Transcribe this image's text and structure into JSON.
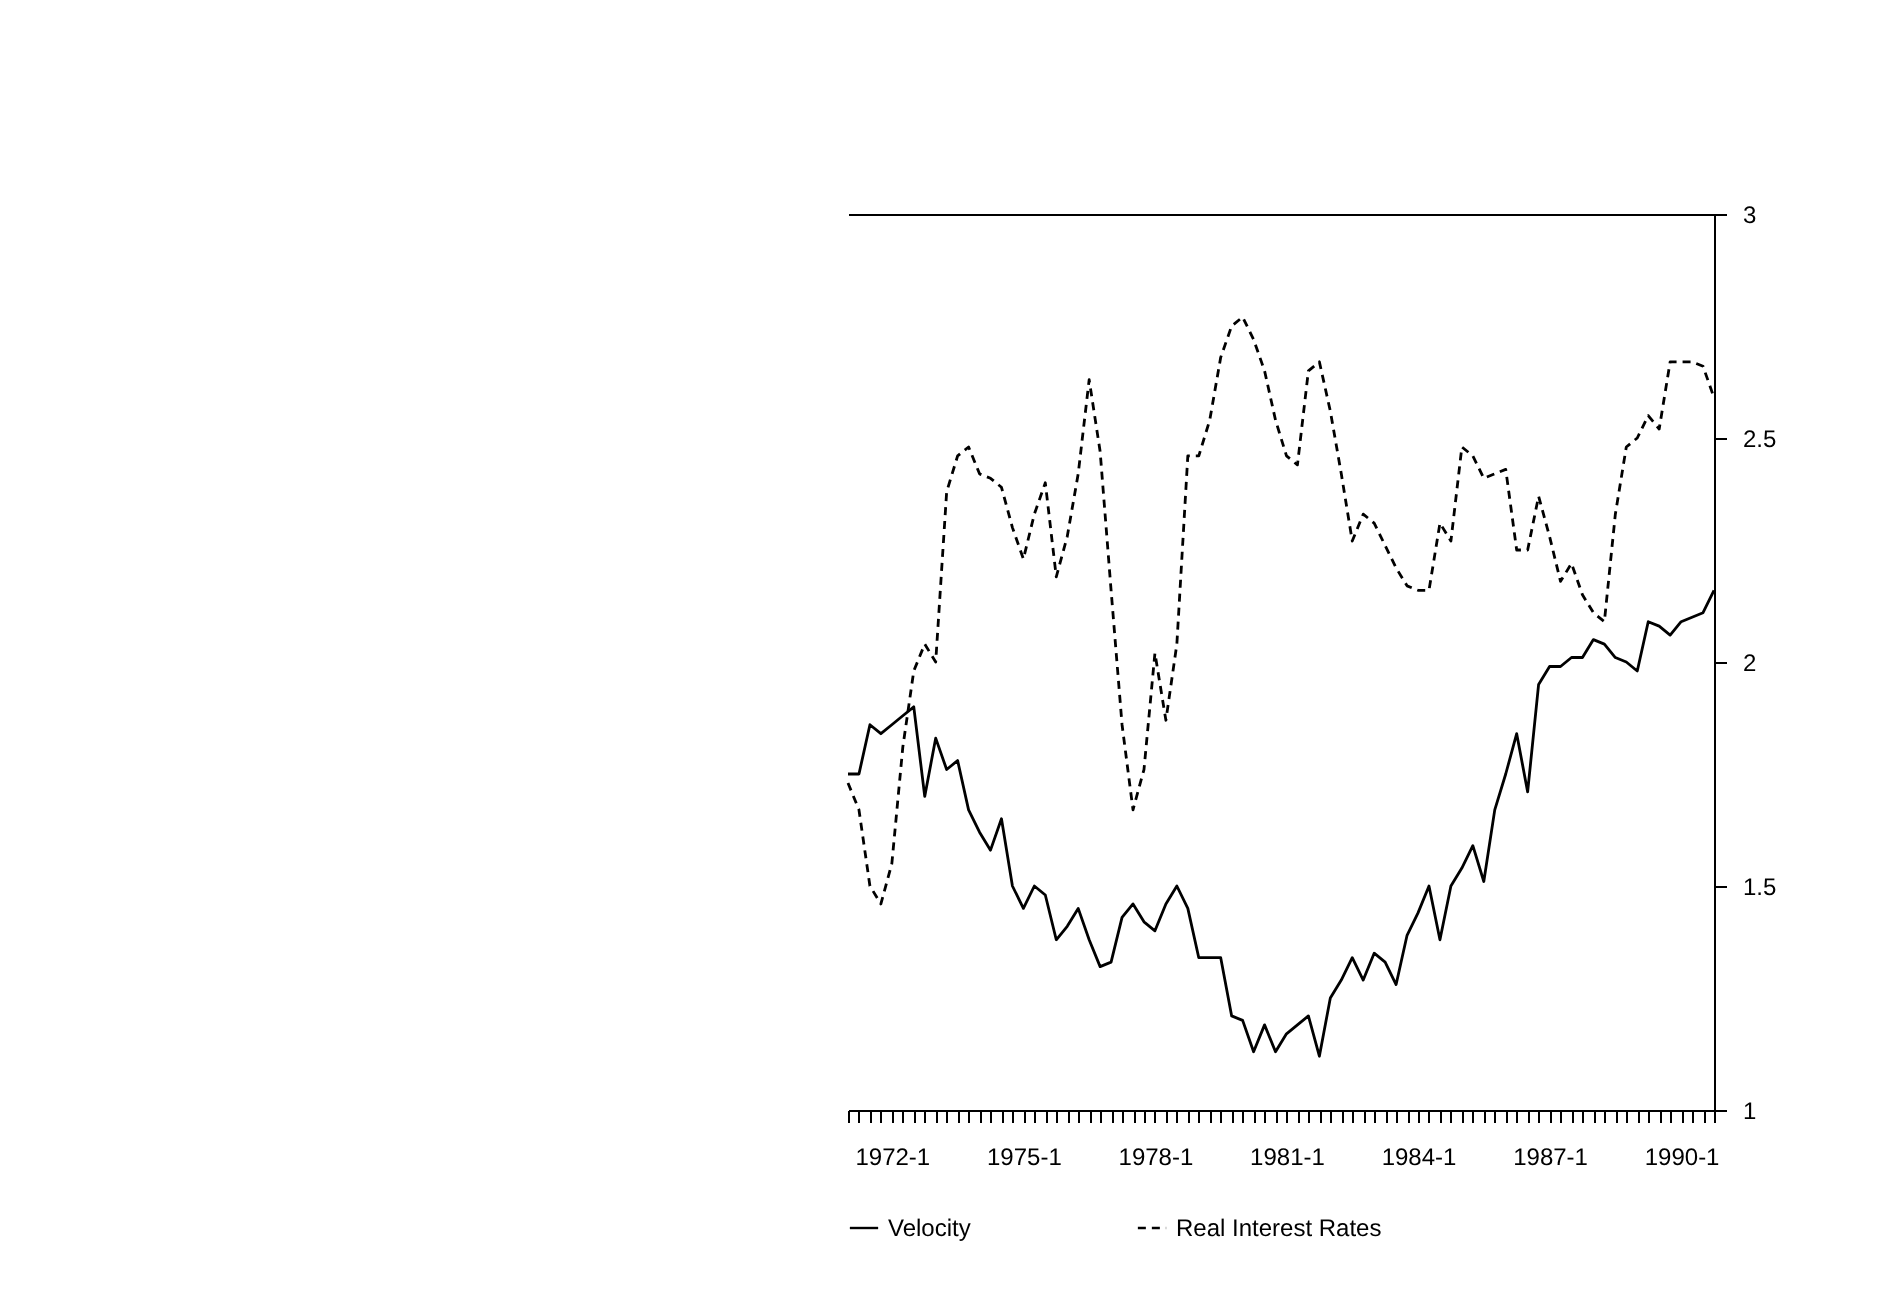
{
  "chart_data": {
    "type": "line",
    "categories": [
      null,
      null,
      null,
      null,
      "1972-1",
      null,
      null,
      null,
      null,
      null,
      null,
      null,
      null,
      null,
      null,
      null,
      "1975-1",
      null,
      null,
      null,
      null,
      null,
      null,
      null,
      null,
      null,
      null,
      null,
      "1978-1",
      null,
      null,
      null,
      null,
      null,
      null,
      null,
      null,
      null,
      null,
      null,
      "1981-1",
      null,
      null,
      null,
      null,
      null,
      null,
      null,
      null,
      null,
      null,
      null,
      "1984-1",
      null,
      null,
      null,
      null,
      null,
      null,
      null,
      null,
      null,
      null,
      null,
      "1987-1",
      null,
      null,
      null,
      null,
      null,
      null,
      null,
      null,
      null,
      null,
      null,
      "1990-1",
      null,
      null,
      null
    ],
    "series": [
      {
        "name": "Velocity",
        "color": "#000000",
        "line_style": "solid",
        "values": [
          1.75,
          1.75,
          1.86,
          1.84,
          1.86,
          1.88,
          1.9,
          1.7,
          1.83,
          1.76,
          1.78,
          1.67,
          1.62,
          1.58,
          1.65,
          1.5,
          1.45,
          1.5,
          1.48,
          1.38,
          1.41,
          1.45,
          1.38,
          1.32,
          1.33,
          1.43,
          1.46,
          1.42,
          1.4,
          1.46,
          1.5,
          1.45,
          1.34,
          1.34,
          1.34,
          1.21,
          1.2,
          1.13,
          1.19,
          1.13,
          1.17,
          1.19,
          1.21,
          1.12,
          1.25,
          1.29,
          1.34,
          1.29,
          1.35,
          1.33,
          1.28,
          1.39,
          1.44,
          1.5,
          1.38,
          1.5,
          1.54,
          1.59,
          1.51,
          1.67,
          1.75,
          1.84,
          1.71,
          1.95,
          1.99,
          1.99,
          2.01,
          2.01,
          2.05,
          2.04,
          2.01,
          2.0,
          1.98,
          2.09,
          2.08,
          2.06,
          2.09,
          2.1,
          2.11,
          2.16
        ]
      },
      {
        "name": "Real Interest Rates",
        "color": "#000000",
        "line_style": "dashed",
        "values": [
          1.73,
          1.67,
          1.5,
          1.46,
          1.55,
          1.81,
          1.98,
          2.04,
          2.0,
          2.38,
          2.46,
          2.48,
          2.42,
          2.41,
          2.39,
          2.3,
          2.23,
          2.33,
          2.4,
          2.19,
          2.28,
          2.42,
          2.63,
          2.47,
          2.16,
          1.86,
          1.67,
          1.76,
          2.02,
          1.87,
          2.04,
          2.46,
          2.46,
          2.54,
          2.68,
          2.75,
          2.77,
          2.72,
          2.65,
          2.54,
          2.46,
          2.44,
          2.65,
          2.67,
          2.56,
          2.42,
          2.27,
          2.33,
          2.31,
          2.26,
          2.21,
          2.17,
          2.16,
          2.16,
          2.31,
          2.27,
          2.48,
          2.46,
          2.41,
          2.42,
          2.43,
          2.25,
          2.25,
          2.37,
          2.28,
          2.18,
          2.22,
          2.15,
          2.11,
          2.09,
          2.33,
          2.48,
          2.5,
          2.55,
          2.52,
          2.67,
          2.67,
          2.67,
          2.66,
          2.59
        ]
      }
    ],
    "ylim": [
      1,
      3
    ],
    "yticks": [
      1,
      1.5,
      2,
      2.5,
      3
    ],
    "legend": "bottom",
    "grid": false
  }
}
